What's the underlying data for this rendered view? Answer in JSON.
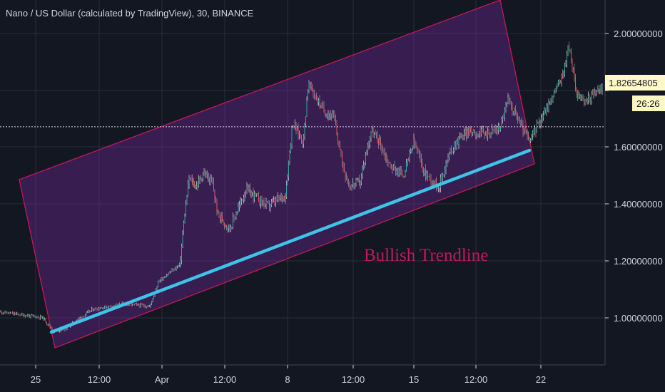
{
  "chart_data": {
    "type": "candlestick",
    "title": "Nano / US Dollar (calculated by TradingView), 30, BINANCE",
    "x_ticks": [
      "25",
      "12:00",
      "Apr",
      "12:00",
      "8",
      "12:00",
      "15",
      "12:00",
      "22"
    ],
    "y_ticks": [
      "2.00000000",
      "1.60000000",
      "1.40000000",
      "1.20000000",
      "1.00000000"
    ],
    "ylim": [
      0.83,
      2.14
    ],
    "grid": true,
    "current_price": {
      "value": "1.82654805",
      "countdown": "26:26"
    },
    "horizontal_line": 1.685,
    "price_path": [
      [
        0,
        1.02
      ],
      [
        60,
        1.0
      ],
      [
        75,
        0.95
      ],
      [
        90,
        0.96
      ],
      [
        130,
        1.03
      ],
      [
        175,
        1.05
      ],
      [
        210,
        1.04
      ],
      [
        222,
        1.13
      ],
      [
        252,
        1.19
      ],
      [
        258,
        1.35
      ],
      [
        265,
        1.5
      ],
      [
        275,
        1.47
      ],
      [
        285,
        1.52
      ],
      [
        298,
        1.48
      ],
      [
        305,
        1.37
      ],
      [
        322,
        1.32
      ],
      [
        345,
        1.46
      ],
      [
        375,
        1.4
      ],
      [
        400,
        1.44
      ],
      [
        410,
        1.7
      ],
      [
        425,
        1.63
      ],
      [
        432,
        1.84
      ],
      [
        445,
        1.78
      ],
      [
        455,
        1.74
      ],
      [
        468,
        1.72
      ],
      [
        480,
        1.55
      ],
      [
        490,
        1.47
      ],
      [
        505,
        1.49
      ],
      [
        520,
        1.67
      ],
      [
        532,
        1.63
      ],
      [
        545,
        1.55
      ],
      [
        565,
        1.51
      ],
      [
        580,
        1.63
      ],
      [
        595,
        1.52
      ],
      [
        615,
        1.47
      ],
      [
        630,
        1.59
      ],
      [
        645,
        1.65
      ],
      [
        660,
        1.67
      ],
      [
        680,
        1.66
      ],
      [
        700,
        1.68
      ],
      [
        712,
        1.78
      ],
      [
        725,
        1.72
      ],
      [
        742,
        1.63
      ],
      [
        755,
        1.7
      ],
      [
        772,
        1.78
      ],
      [
        790,
        1.88
      ],
      [
        797,
        1.98
      ],
      [
        808,
        1.81
      ],
      [
        818,
        1.77
      ],
      [
        830,
        1.8
      ],
      [
        845,
        1.83
      ]
    ],
    "annotations": {
      "channel_label": "Bullish Trendline",
      "channel_color": "#c2185b",
      "trendline_color": "#3fc3e8"
    },
    "colors": {
      "background": "#131722",
      "up": "#26a69a",
      "down": "#ef5350",
      "candle_neutral": "#d8d8d8"
    }
  }
}
